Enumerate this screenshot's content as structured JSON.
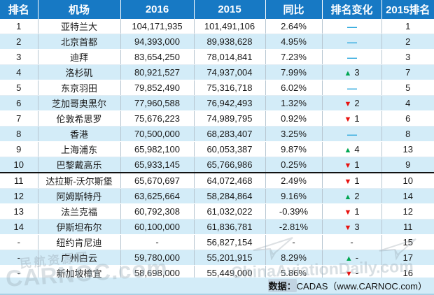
{
  "chart_data": {
    "type": "table",
    "columns": [
      "排名",
      "机场",
      "2016",
      "2015",
      "同比",
      "排名变化",
      "2015排名"
    ],
    "rows": [
      {
        "rank": "1",
        "airport": "亚特兰大",
        "y2016": "104,171,935",
        "y2015": "101,491,106",
        "yoy": "2.64%",
        "yoy_negative": false,
        "change_dir": "same",
        "change_value": "",
        "rank2015": "1"
      },
      {
        "rank": "2",
        "airport": "北京首都",
        "y2016": "94,393,000",
        "y2015": "89,938,628",
        "yoy": "4.95%",
        "yoy_negative": false,
        "change_dir": "same",
        "change_value": "",
        "rank2015": "2"
      },
      {
        "rank": "3",
        "airport": "迪拜",
        "y2016": "83,654,250",
        "y2015": "78,014,841",
        "yoy": "7.23%",
        "yoy_negative": false,
        "change_dir": "same",
        "change_value": "",
        "rank2015": "3"
      },
      {
        "rank": "4",
        "airport": "洛杉矶",
        "y2016": "80,921,527",
        "y2015": "74,937,004",
        "yoy": "7.99%",
        "yoy_negative": false,
        "change_dir": "up",
        "change_value": "3",
        "rank2015": "7"
      },
      {
        "rank": "5",
        "airport": "东京羽田",
        "y2016": "79,852,490",
        "y2015": "75,316,718",
        "yoy": "6.02%",
        "yoy_negative": false,
        "change_dir": "same",
        "change_value": "",
        "rank2015": "5"
      },
      {
        "rank": "6",
        "airport": "芝加哥奥黑尔",
        "y2016": "77,960,588",
        "y2015": "76,942,493",
        "yoy": "1.32%",
        "yoy_negative": false,
        "change_dir": "down",
        "change_value": "2",
        "rank2015": "4"
      },
      {
        "rank": "7",
        "airport": "伦敦希思罗",
        "y2016": "75,676,223",
        "y2015": "74,989,795",
        "yoy": "0.92%",
        "yoy_negative": false,
        "change_dir": "down",
        "change_value": "1",
        "rank2015": "6"
      },
      {
        "rank": "8",
        "airport": "香港",
        "y2016": "70,500,000",
        "y2015": "68,283,407",
        "yoy": "3.25%",
        "yoy_negative": false,
        "change_dir": "same",
        "change_value": "",
        "rank2015": "8"
      },
      {
        "rank": "9",
        "airport": "上海浦东",
        "y2016": "65,982,100",
        "y2015": "60,053,387",
        "yoy": "9.87%",
        "yoy_negative": false,
        "change_dir": "up",
        "change_value": "4",
        "rank2015": "13"
      },
      {
        "rank": "10",
        "airport": "巴黎戴高乐",
        "y2016": "65,933,145",
        "y2015": "65,766,986",
        "yoy": "0.25%",
        "yoy_negative": false,
        "change_dir": "down",
        "change_value": "1",
        "rank2015": "9",
        "top10_separator": true
      },
      {
        "rank": "11",
        "airport": "达拉斯-沃尔斯堡",
        "y2016": "65,670,697",
        "y2015": "64,072,468",
        "yoy": "2.49%",
        "yoy_negative": false,
        "change_dir": "down",
        "change_value": "1",
        "rank2015": "10"
      },
      {
        "rank": "12",
        "airport": "阿姆斯特丹",
        "y2016": "63,625,664",
        "y2015": "58,284,864",
        "yoy": "9.16%",
        "yoy_negative": false,
        "change_dir": "up",
        "change_value": "2",
        "rank2015": "14"
      },
      {
        "rank": "13",
        "airport": "法兰克福",
        "y2016": "60,792,308",
        "y2015": "61,032,022",
        "yoy": "-0.39%",
        "yoy_negative": true,
        "change_dir": "down",
        "change_value": "1",
        "rank2015": "12"
      },
      {
        "rank": "14",
        "airport": "伊斯坦布尔",
        "y2016": "60,100,000",
        "y2015": "61,836,781",
        "yoy": "-2.81%",
        "yoy_negative": true,
        "change_dir": "down",
        "change_value": "3",
        "rank2015": "11"
      },
      {
        "rank": "-",
        "airport": "纽约肯尼迪",
        "y2016": "-",
        "y2015": "56,827,154",
        "yoy": "-",
        "yoy_negative": false,
        "change_dir": "dash",
        "change_value": "",
        "rank2015": "15"
      },
      {
        "rank": "-",
        "airport": "广州白云",
        "y2016": "59,780,000",
        "y2015": "55,201,915",
        "yoy": "8.29%",
        "yoy_negative": false,
        "change_dir": "up",
        "change_value": "-",
        "rank2015": "17"
      },
      {
        "rank": "-",
        "airport": "新加坡樟宜",
        "y2016": "58,698,000",
        "y2015": "55,449,000",
        "yoy": "5.86%",
        "yoy_negative": false,
        "change_dir": "down",
        "change_value": "-",
        "rank2015": "16"
      }
    ]
  },
  "footer": {
    "source_label": "数据：",
    "source_value": "CADAS（www.CARNOC.com）"
  },
  "watermarks": {
    "left_small": "民航资源网",
    "left_large": "CARNOC.com",
    "center": "ChinaAviationDaily.com"
  },
  "colors": {
    "header_bg": "#1779c4",
    "stripe_bg": "#d3ecf8",
    "up_green": "#00a651",
    "down_red": "#e8110e",
    "same_dash_blue": "#2ba7dd",
    "negative_text": "#e8110e"
  },
  "symbols": {
    "up_triangle": "▲",
    "down_triangle": "▼",
    "same_dash": "—",
    "empty_dash": "-"
  }
}
